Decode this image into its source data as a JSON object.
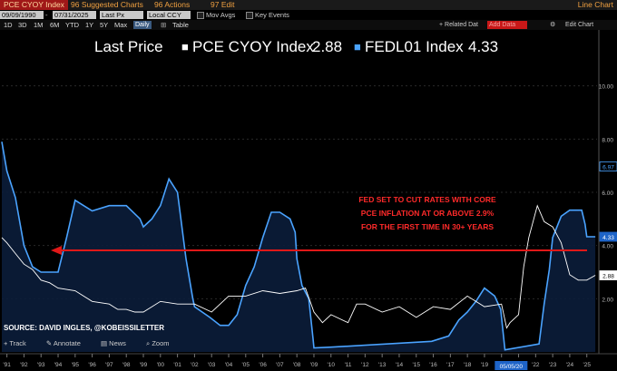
{
  "toolbar": {
    "title": "PCE CYOY Index",
    "suggested": "96 Suggested Charts",
    "actions": "96 Actions",
    "edit": "97 Edit",
    "chart_kind": "Line Chart"
  },
  "controls": {
    "start_date": "09/09/1990",
    "end_date": "07/31/2025",
    "field": "Last Px",
    "currency": "Local CCY",
    "mov_avgs": "Mov Avgs",
    "key_events": "Key Events",
    "ranges": [
      "1D",
      "3D",
      "1M",
      "6M",
      "YTD",
      "1Y",
      "5Y",
      "Max"
    ],
    "frequency": "Daily",
    "table": "Table",
    "related": "+ Related Dat",
    "add_data": "Add Data",
    "edit_chart": "Edit Chart"
  },
  "legend": {
    "label": "Last Price",
    "s1": "PCE CYOY Index",
    "s1_value": "2.88",
    "s2": "FEDL01 Index",
    "s2_value": "4.33"
  },
  "annotation": [
    "FED SET TO CUT RATES WITH CORE",
    "PCE INFLATION AT OR ABOVE 2.9%",
    "FOR THE FIRST TIME IN 30+ YEARS"
  ],
  "source": "SOURCE: DAVID INGLES, @KOBEISSILETTER",
  "bottom_tools": [
    "Track",
    "Annotate",
    "News",
    "Zoom"
  ],
  "cursor_date": "05/05/20",
  "colors": {
    "pce": "#ffffff",
    "fed": "#4aa3ff",
    "fed_fill": "#0b1d3a",
    "arrow": "#e01818",
    "accent": "#f0a040",
    "title_bg": "#a01818"
  },
  "chart_data": {
    "type": "line",
    "xlim": [
      1990.7,
      2025.6
    ],
    "ylim": [
      0,
      10.5
    ],
    "x_ticks": [
      "'91",
      "'92",
      "'93",
      "'94",
      "'95",
      "'96",
      "'97",
      "'98",
      "'99",
      "'00",
      "'01",
      "'02",
      "'03",
      "'04",
      "'05",
      "'06",
      "'07",
      "'08",
      "'09",
      "'10",
      "'11",
      "'12",
      "'13",
      "'14",
      "'15",
      "'16",
      "'17",
      "'18",
      "'19",
      "'20",
      "'21",
      "'22",
      "'23",
      "'24",
      "'25"
    ],
    "y_ticks": [
      "2.00",
      "4.00",
      "6.00",
      "8.00",
      "10.00"
    ],
    "price_tags": [
      {
        "value": 6.97,
        "label": "6.97",
        "style": "outline"
      },
      {
        "value": 4.33,
        "label": "4.33",
        "style": "blue"
      },
      {
        "value": 2.88,
        "label": "2.88",
        "style": "white"
      }
    ],
    "series": [
      {
        "name": "PCE CYOY Index",
        "x": [
          1990.7,
          1991.0,
          1991.5,
          1992.0,
          1992.5,
          1993.0,
          1993.5,
          1994.0,
          1995.0,
          1996.0,
          1997.0,
          1997.5,
          1998.0,
          1998.5,
          1999.0,
          2000.0,
          2001.0,
          2002.0,
          2003.0,
          2004.0,
          2005.0,
          2006.0,
          2007.0,
          2008.0,
          2008.5,
          2009.0,
          2009.5,
          2010.0,
          2011.0,
          2011.5,
          2012.0,
          2013.0,
          2014.0,
          2015.0,
          2016.0,
          2017.0,
          2018.0,
          2019.0,
          2020.0,
          2020.3,
          2020.5,
          2021.0,
          2021.3,
          2021.6,
          2022.1,
          2022.5,
          2023.0,
          2023.5,
          2024.0,
          2024.5,
          2025.0,
          2025.5
        ],
        "y": [
          4.3,
          4.1,
          3.7,
          3.3,
          3.1,
          2.7,
          2.6,
          2.4,
          2.3,
          1.9,
          1.8,
          1.6,
          1.6,
          1.5,
          1.5,
          1.9,
          1.8,
          1.8,
          1.5,
          2.1,
          2.1,
          2.3,
          2.2,
          2.3,
          2.4,
          1.5,
          1.1,
          1.4,
          1.1,
          1.8,
          1.8,
          1.5,
          1.7,
          1.3,
          1.7,
          1.6,
          2.1,
          1.7,
          1.8,
          0.9,
          1.1,
          1.4,
          3.2,
          4.3,
          5.5,
          4.9,
          4.7,
          4.1,
          2.9,
          2.7,
          2.7,
          2.88
        ]
      },
      {
        "name": "FEDL01 Index",
        "x": [
          1990.7,
          1991.0,
          1991.5,
          1992.0,
          1992.5,
          1993.0,
          1994.0,
          1994.5,
          1995.0,
          1996.0,
          1997.0,
          1998.0,
          1998.8,
          1999.0,
          1999.5,
          2000.0,
          2000.5,
          2001.0,
          2001.5,
          2001.9,
          2002.0,
          2002.9,
          2003.5,
          2004.0,
          2004.5,
          2005.0,
          2005.5,
          2006.0,
          2006.5,
          2007.0,
          2007.6,
          2007.9,
          2008.0,
          2008.3,
          2008.7,
          2008.95,
          2009.0,
          2010.0,
          2015.9,
          2016.9,
          2017.5,
          2018.0,
          2018.5,
          2019.0,
          2019.6,
          2019.95,
          2020.2,
          2022.2,
          2022.5,
          2022.8,
          2023.0,
          2023.5,
          2024.0,
          2024.7,
          2024.9,
          2025.0,
          2025.5
        ],
        "y": [
          7.9,
          6.8,
          5.8,
          4.0,
          3.2,
          3.0,
          3.0,
          4.3,
          5.7,
          5.3,
          5.5,
          5.5,
          5.0,
          4.7,
          5.0,
          5.5,
          6.5,
          6.0,
          3.5,
          2.0,
          1.7,
          1.3,
          1.0,
          1.0,
          1.4,
          2.5,
          3.2,
          4.3,
          5.25,
          5.25,
          5.0,
          4.5,
          3.5,
          2.5,
          2.0,
          0.5,
          0.15,
          0.18,
          0.4,
          0.6,
          1.2,
          1.5,
          1.9,
          2.4,
          2.1,
          1.6,
          0.08,
          0.3,
          1.8,
          3.1,
          4.3,
          5.1,
          5.33,
          5.33,
          4.8,
          4.33,
          4.33
        ]
      }
    ],
    "reference_line": {
      "value": 2.9,
      "label": "core PCE 2.9%"
    }
  }
}
